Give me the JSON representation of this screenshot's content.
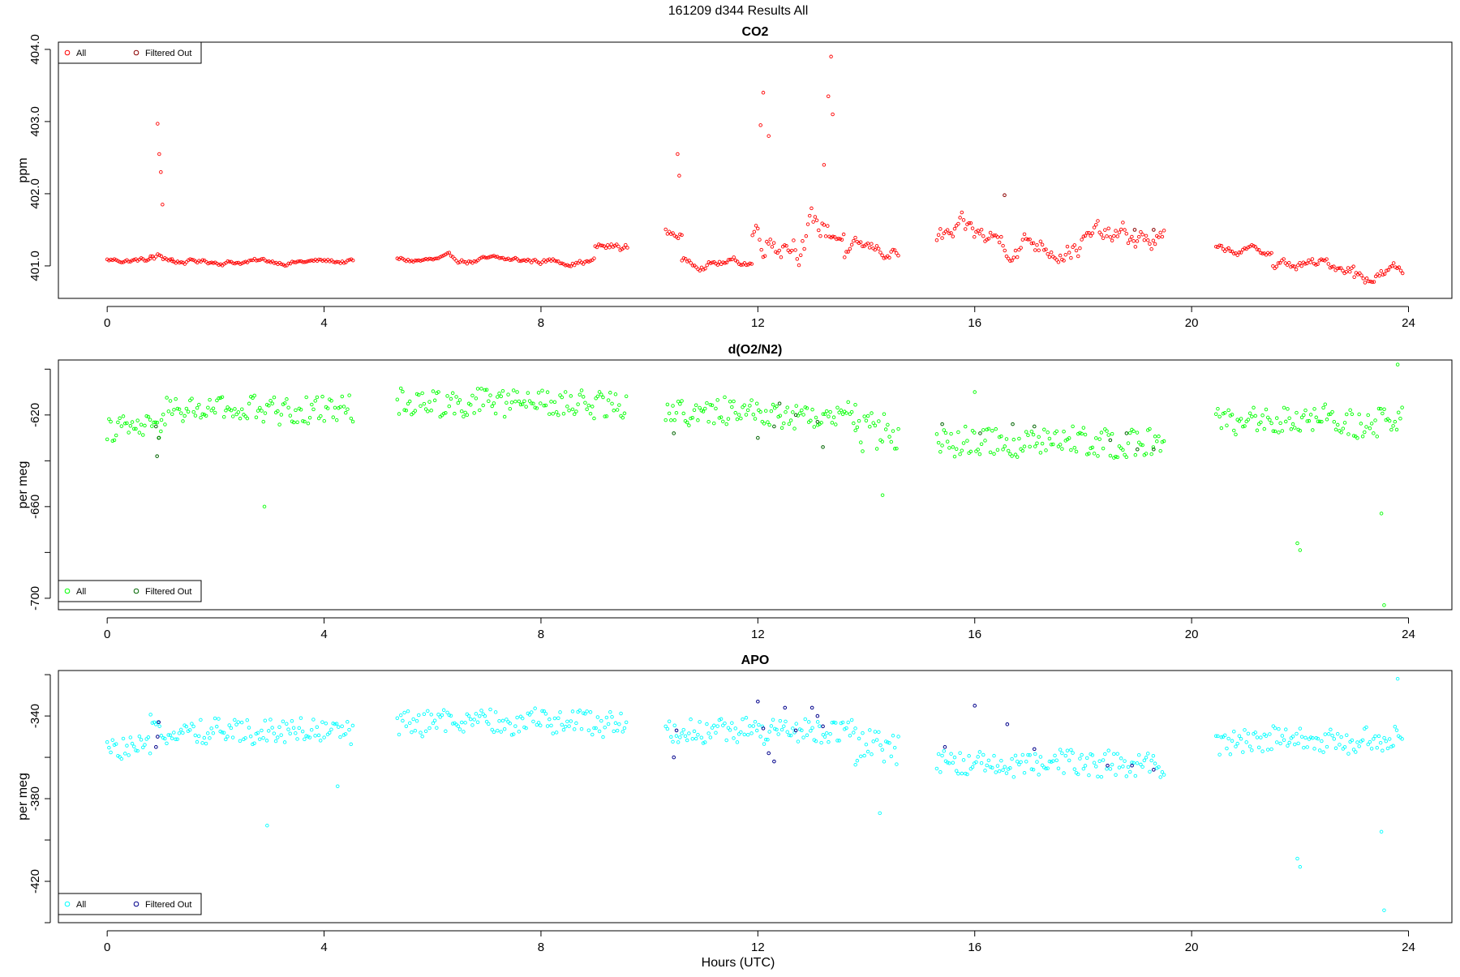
{
  "page_title": "161209   d344   Results All",
  "xlabel": "Hours (UTC)",
  "chart_data": [
    {
      "type": "scatter",
      "title": "CO2",
      "ylabel": "ppm",
      "xlim": [
        -0.9,
        24.8
      ],
      "ylim": [
        400.55,
        404.1
      ],
      "xticks": [
        0,
        4,
        8,
        12,
        16,
        20,
        24
      ],
      "yticks": [
        401.0,
        402.0,
        403.0,
        404.0
      ],
      "ytick_labels": [
        "401.0",
        "402.0",
        "403.0",
        "404.0"
      ],
      "legend_position": "top-left",
      "legend_entries": [
        "All",
        "Filtered Out"
      ],
      "colors": {
        "all": "#ff0000",
        "filtered": "#8b0000"
      },
      "segments": [
        {
          "x0": 0.0,
          "x1": 0.8,
          "base": 401.08,
          "noise": 0.05
        },
        {
          "x0": 0.8,
          "x1": 1.2,
          "base": 401.1,
          "noise": 0.1
        },
        {
          "x0": 1.2,
          "x1": 4.55,
          "base": 401.06,
          "noise": 0.05
        },
        {
          "x0": 5.35,
          "x1": 9.0,
          "base": 401.07,
          "noise": 0.06
        },
        {
          "x0": 9.0,
          "x1": 9.6,
          "base": 401.25,
          "noise": 0.1
        },
        {
          "x0": 10.3,
          "x1": 10.6,
          "base": 401.45,
          "noise": 0.12
        },
        {
          "x0": 10.6,
          "x1": 11.9,
          "base": 401.05,
          "noise": 0.08
        },
        {
          "x0": 11.9,
          "x1": 13.6,
          "base": 401.5,
          "noise": 0.35
        },
        {
          "x0": 13.6,
          "x1": 14.6,
          "base": 401.2,
          "noise": 0.15
        },
        {
          "x0": 15.3,
          "x1": 19.5,
          "base": 401.35,
          "noise": 0.25
        },
        {
          "x0": 20.45,
          "x1": 21.5,
          "base": 401.2,
          "noise": 0.08
        },
        {
          "x0": 21.5,
          "x1": 23.0,
          "base": 401.0,
          "noise": 0.12
        },
        {
          "x0": 23.0,
          "x1": 23.9,
          "base": 400.9,
          "noise": 0.15
        }
      ],
      "spikes": [
        {
          "x": 0.93,
          "y": 402.97
        },
        {
          "x": 0.96,
          "y": 402.55
        },
        {
          "x": 0.99,
          "y": 402.3
        },
        {
          "x": 1.02,
          "y": 401.85
        },
        {
          "x": 10.52,
          "y": 402.55
        },
        {
          "x": 10.55,
          "y": 402.25
        },
        {
          "x": 12.1,
          "y": 403.4
        },
        {
          "x": 12.05,
          "y": 402.95
        },
        {
          "x": 12.2,
          "y": 402.8
        },
        {
          "x": 13.3,
          "y": 403.35
        },
        {
          "x": 13.35,
          "y": 403.9
        },
        {
          "x": 13.38,
          "y": 403.1
        },
        {
          "x": 13.22,
          "y": 402.4
        }
      ],
      "filtered_points": [
        {
          "x": 16.55,
          "y": 401.98
        },
        {
          "x": 18.95,
          "y": 401.5
        },
        {
          "x": 19.3,
          "y": 401.5
        }
      ]
    },
    {
      "type": "scatter",
      "title": "d(O2/N2)",
      "ylabel": "per meg",
      "xlim": [
        -0.9,
        24.8
      ],
      "ylim": [
        -705,
        -596
      ],
      "xticks": [
        0,
        4,
        8,
        12,
        16,
        20,
        24
      ],
      "yticks": [
        -700,
        -680,
        -660,
        -640,
        -620,
        -600
      ],
      "ytick_labels": [
        "-700",
        "",
        "-660",
        "",
        "-620",
        ""
      ],
      "legend_position": "bottom-left",
      "legend_entries": [
        "All",
        "Filtered Out"
      ],
      "colors": {
        "all": "#00ff00",
        "filtered": "#006400"
      },
      "segments": [
        {
          "x0": 0.0,
          "x1": 1.0,
          "base": -626,
          "noise": 5
        },
        {
          "x0": 1.0,
          "x1": 4.55,
          "base": -618,
          "noise": 6
        },
        {
          "x0": 5.35,
          "x1": 9.6,
          "base": -615,
          "noise": 6
        },
        {
          "x0": 10.3,
          "x1": 13.8,
          "base": -619,
          "noise": 6
        },
        {
          "x0": 13.8,
          "x1": 14.6,
          "base": -628,
          "noise": 9
        },
        {
          "x0": 15.3,
          "x1": 19.5,
          "base": -632,
          "noise": 6
        },
        {
          "x0": 20.45,
          "x1": 23.9,
          "base": -623,
          "noise": 6
        }
      ],
      "spikes": [
        {
          "x": 2.9,
          "y": -660
        },
        {
          "x": 14.3,
          "y": -655
        },
        {
          "x": 21.95,
          "y": -676
        },
        {
          "x": 22.0,
          "y": -679
        },
        {
          "x": 23.5,
          "y": -663
        },
        {
          "x": 23.55,
          "y": -703
        },
        {
          "x": 23.8,
          "y": -598
        },
        {
          "x": 16.0,
          "y": -610
        }
      ],
      "filtered_points": [
        {
          "x": 0.9,
          "y": -625
        },
        {
          "x": 0.95,
          "y": -630
        },
        {
          "x": 0.92,
          "y": -638
        },
        {
          "x": 10.45,
          "y": -628
        },
        {
          "x": 12.0,
          "y": -630
        },
        {
          "x": 12.3,
          "y": -625
        },
        {
          "x": 12.4,
          "y": -615
        },
        {
          "x": 12.7,
          "y": -620
        },
        {
          "x": 13.1,
          "y": -623
        },
        {
          "x": 13.2,
          "y": -634
        },
        {
          "x": 15.4,
          "y": -624
        },
        {
          "x": 16.1,
          "y": -628
        },
        {
          "x": 16.7,
          "y": -624
        },
        {
          "x": 17.1,
          "y": -625
        },
        {
          "x": 18.5,
          "y": -631
        },
        {
          "x": 18.8,
          "y": -628
        },
        {
          "x": 19.0,
          "y": -635
        },
        {
          "x": 19.3,
          "y": -635
        }
      ]
    },
    {
      "type": "scatter",
      "title": "APO",
      "ylabel": "per meg",
      "xlim": [
        -0.9,
        24.8
      ],
      "ylim": [
        -440,
        -318
      ],
      "xticks": [
        0,
        4,
        8,
        12,
        16,
        20,
        24
      ],
      "yticks": [
        -440,
        -420,
        -400,
        -380,
        -360,
        -340,
        -320
      ],
      "ytick_labels": [
        "",
        "-420",
        "",
        "-380",
        "",
        "-340",
        ""
      ],
      "legend_position": "bottom-left",
      "legend_entries": [
        "All",
        "Filtered Out"
      ],
      "colors": {
        "all": "#00ffff",
        "filtered": "#00008b"
      },
      "segments": [
        {
          "x0": 0.0,
          "x1": 0.8,
          "base": -356,
          "noise": 5
        },
        {
          "x0": 0.8,
          "x1": 4.55,
          "base": -347,
          "noise": 6
        },
        {
          "x0": 5.35,
          "x1": 9.6,
          "base": -343,
          "noise": 6
        },
        {
          "x0": 10.3,
          "x1": 13.8,
          "base": -347,
          "noise": 6
        },
        {
          "x0": 13.8,
          "x1": 14.6,
          "base": -357,
          "noise": 9
        },
        {
          "x0": 15.3,
          "x1": 19.5,
          "base": -363,
          "noise": 6
        },
        {
          "x0": 20.45,
          "x1": 23.9,
          "base": -352,
          "noise": 6
        }
      ],
      "spikes": [
        {
          "x": 2.95,
          "y": -393
        },
        {
          "x": 14.25,
          "y": -387
        },
        {
          "x": 21.95,
          "y": -409
        },
        {
          "x": 22.0,
          "y": -413
        },
        {
          "x": 23.5,
          "y": -396
        },
        {
          "x": 23.55,
          "y": -434
        },
        {
          "x": 23.8,
          "y": -322
        },
        {
          "x": 4.25,
          "y": -374
        }
      ],
      "filtered_points": [
        {
          "x": 0.95,
          "y": -343
        },
        {
          "x": 0.9,
          "y": -355
        },
        {
          "x": 0.93,
          "y": -350
        },
        {
          "x": 10.45,
          "y": -360
        },
        {
          "x": 10.5,
          "y": -347
        },
        {
          "x": 12.0,
          "y": -333
        },
        {
          "x": 12.1,
          "y": -346
        },
        {
          "x": 12.2,
          "y": -358
        },
        {
          "x": 12.3,
          "y": -362
        },
        {
          "x": 12.5,
          "y": -336
        },
        {
          "x": 12.7,
          "y": -347
        },
        {
          "x": 13.0,
          "y": -336
        },
        {
          "x": 13.1,
          "y": -340
        },
        {
          "x": 13.2,
          "y": -345
        },
        {
          "x": 15.45,
          "y": -355
        },
        {
          "x": 16.0,
          "y": -335
        },
        {
          "x": 16.6,
          "y": -344
        },
        {
          "x": 17.1,
          "y": -356
        },
        {
          "x": 18.45,
          "y": -364
        },
        {
          "x": 18.9,
          "y": -364
        },
        {
          "x": 19.3,
          "y": -366
        }
      ]
    }
  ]
}
